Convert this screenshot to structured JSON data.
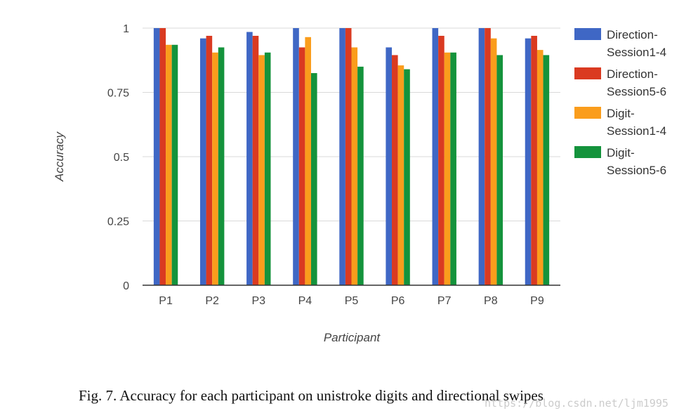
{
  "chart_data": {
    "type": "bar",
    "xlabel": "Participant",
    "ylabel": "Accuracy",
    "ylim": [
      0,
      1
    ],
    "yticks": [
      "0",
      "0.25",
      "0.5",
      "0.75",
      "1"
    ],
    "categories": [
      "P1",
      "P2",
      "P3",
      "P4",
      "P5",
      "P6",
      "P7",
      "P8",
      "P9"
    ],
    "series": [
      {
        "name": "Direction-Session1-4",
        "legend_lines": [
          "Direction-",
          "Session1-4"
        ],
        "color": "#3F67C5",
        "values": [
          1.0,
          0.96,
          0.985,
          1.0,
          1.0,
          0.925,
          1.0,
          1.0,
          0.96
        ]
      },
      {
        "name": "Direction-Session5-6",
        "legend_lines": [
          "Direction-",
          "Session5-6"
        ],
        "color": "#DA3A21",
        "values": [
          1.0,
          0.97,
          0.97,
          0.925,
          1.0,
          0.895,
          0.97,
          1.0,
          0.97
        ]
      },
      {
        "name": "Digit-Session1-4",
        "legend_lines": [
          "Digit-",
          "Session1-4"
        ],
        "color": "#FA9D1C",
        "values": [
          0.935,
          0.905,
          0.895,
          0.965,
          0.925,
          0.855,
          0.905,
          0.96,
          0.915
        ]
      },
      {
        "name": "Digit-Session5-6",
        "legend_lines": [
          "Digit-",
          "Session5-6"
        ],
        "color": "#14933C",
        "values": [
          0.935,
          0.925,
          0.905,
          0.825,
          0.85,
          0.84,
          0.905,
          0.895,
          0.895
        ]
      }
    ],
    "grid": true,
    "legend_position": "right"
  },
  "caption": "Fig. 7.  Accuracy for each participant on unistroke digits and directional swipes",
  "watermark": "https://blog.csdn.net/ljm1995"
}
